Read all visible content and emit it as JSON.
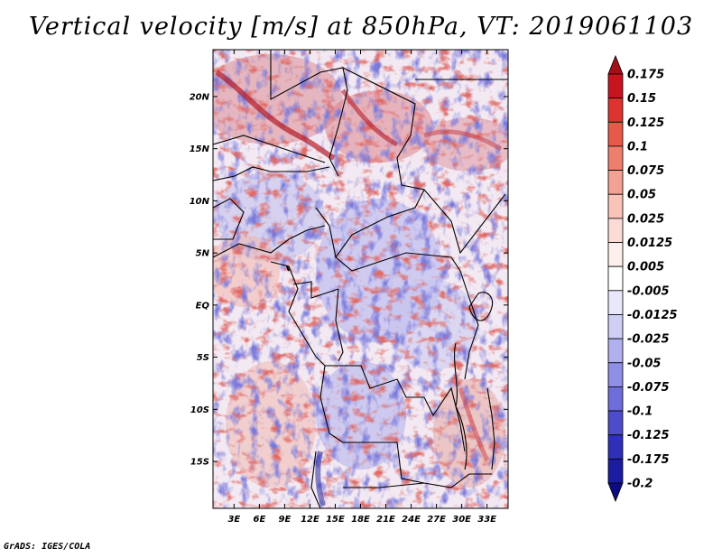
{
  "title": "Vertical velocity [m/s] at 850hPa, VT: 2019061103",
  "credit": "GrADS: IGES/COLA",
  "map": {
    "lat_labels": [
      "20N",
      "15N",
      "10N",
      "5N",
      "EQ",
      "5S",
      "10S",
      "15S"
    ],
    "lon_labels": [
      "3E",
      "6E",
      "9E",
      "12E",
      "15E",
      "18E",
      "21E",
      "24E",
      "27E",
      "30E",
      "33E"
    ],
    "lat_values": [
      20,
      15,
      10,
      5,
      0,
      -5,
      -10,
      -15
    ],
    "lon_values": [
      3,
      6,
      9,
      12,
      15,
      18,
      21,
      24,
      27,
      30,
      33
    ],
    "lon_range": [
      0.5,
      35.5
    ],
    "lat_range": [
      -19.5,
      24.5
    ]
  },
  "colorbar": {
    "labels": [
      "0.175",
      "0.15",
      "0.125",
      "0.1",
      "0.075",
      "0.05",
      "0.025",
      "0.0125",
      "0.005",
      "-0.005",
      "-0.0125",
      "-0.025",
      "-0.05",
      "-0.075",
      "-0.1",
      "-0.125",
      "-0.175",
      "-0.2"
    ],
    "colors": [
      "#a50f15",
      "#c8141e",
      "#dc3530",
      "#e75a4a",
      "#ef7f6d",
      "#f4a195",
      "#f8c3b9",
      "#fbdcd5",
      "#fdf0ec",
      "#ffffff",
      "#e8e8fa",
      "#cfcff5",
      "#b0b0ee",
      "#8f8fe5",
      "#6e6ed9",
      "#4d4dcc",
      "#2f2fb8",
      "#1c1ca0",
      "#0c0c80"
    ]
  }
}
